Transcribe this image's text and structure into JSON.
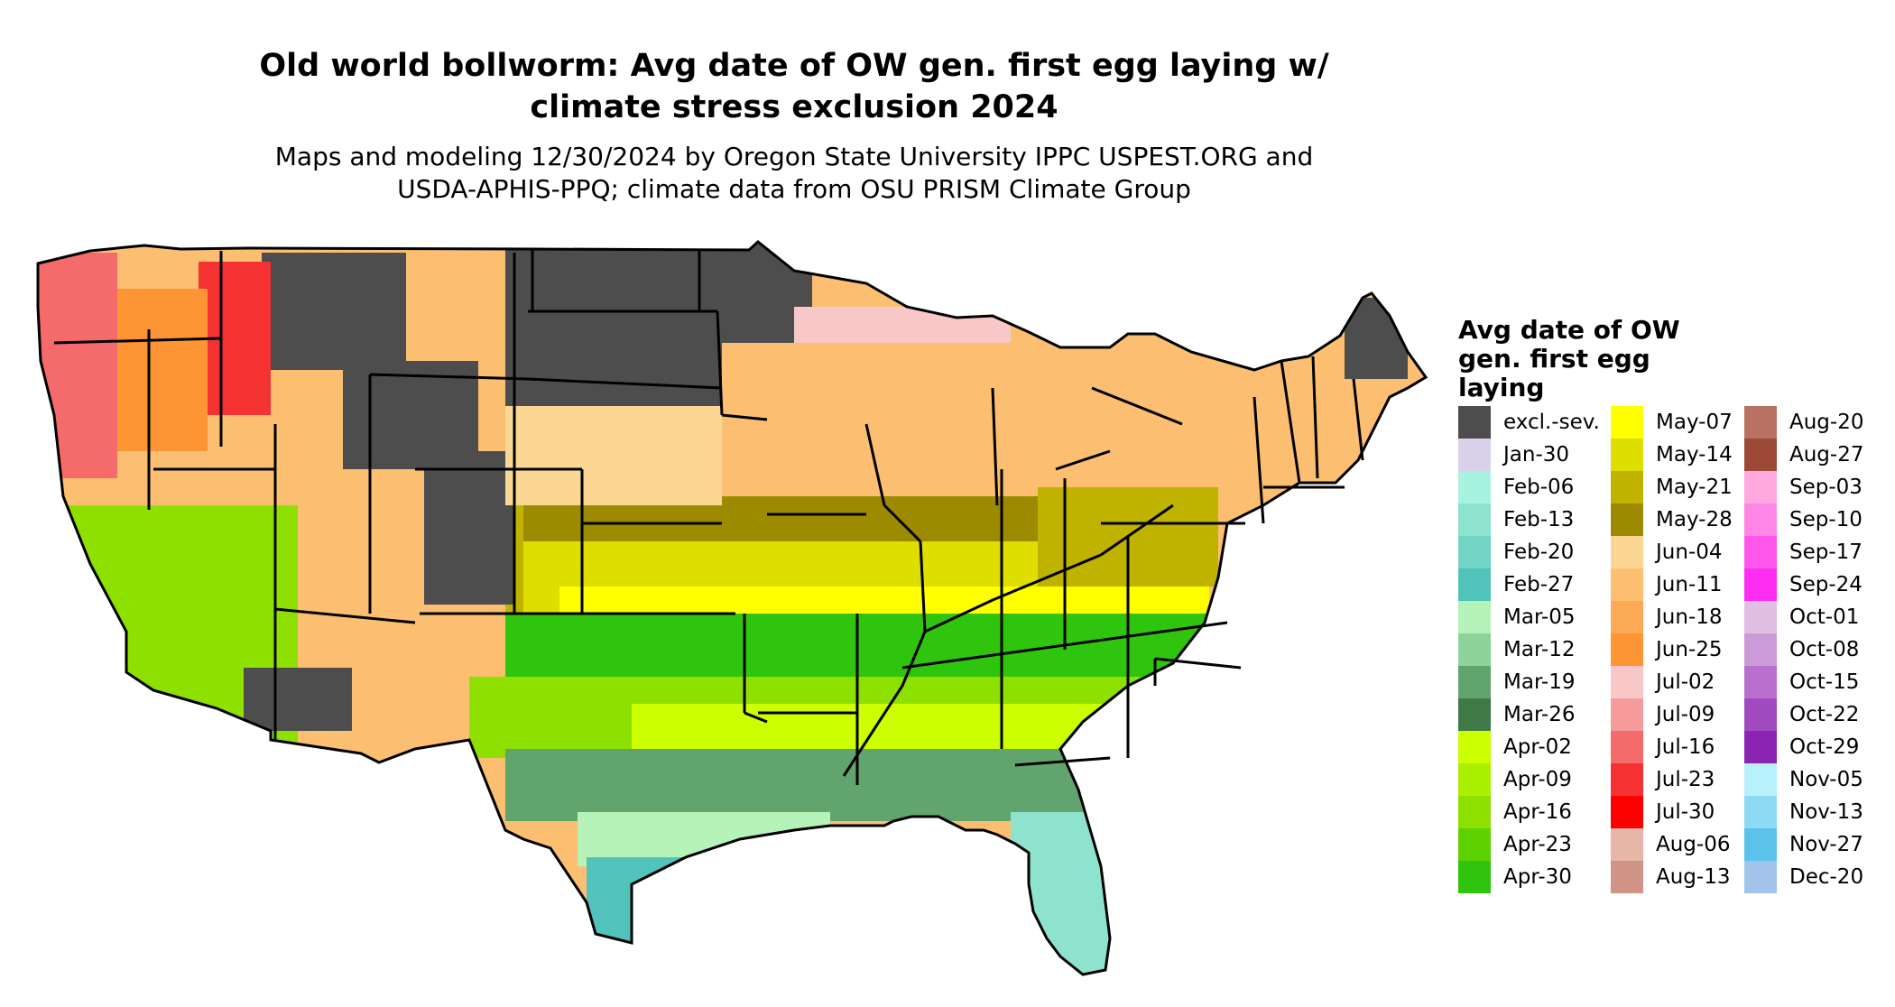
{
  "title_line1": "Old world bollworm: Avg date of OW gen. first egg laying w/",
  "title_line2": "climate stress exclusion 2024",
  "subtitle_line1": "Maps and modeling 12/30/2024 by Oregon State University IPPC USPEST.ORG and",
  "subtitle_line2": "USDA-APHIS-PPQ; climate data from OSU PRISM Climate Group",
  "legend": {
    "title_lines": [
      "Avg date of OW",
      "gen. first egg",
      "laying"
    ],
    "columns": [
      [
        {
          "label": "excl.-sev.",
          "color": "#4d4d4d"
        },
        {
          "label": "Jan-30",
          "color": "#d9d1ea"
        },
        {
          "label": "Feb-06",
          "color": "#a8f3df"
        },
        {
          "label": "Feb-13",
          "color": "#8ee3cf"
        },
        {
          "label": "Feb-20",
          "color": "#71d4c4"
        },
        {
          "label": "Feb-27",
          "color": "#52c3bb"
        },
        {
          "label": "Mar-05",
          "color": "#b6f3b9"
        },
        {
          "label": "Mar-12",
          "color": "#8ed49a"
        },
        {
          "label": "Mar-19",
          "color": "#62a46d"
        },
        {
          "label": "Mar-26",
          "color": "#3f7a46"
        },
        {
          "label": "Apr-02",
          "color": "#ccff00"
        },
        {
          "label": "Apr-09",
          "color": "#aaf000"
        },
        {
          "label": "Apr-16",
          "color": "#8ee000"
        },
        {
          "label": "Apr-23",
          "color": "#5ed200"
        },
        {
          "label": "Apr-30",
          "color": "#2fc50e"
        }
      ],
      [
        {
          "label": "May-07",
          "color": "#ffff00"
        },
        {
          "label": "May-14",
          "color": "#dede00"
        },
        {
          "label": "May-21",
          "color": "#bfb300"
        },
        {
          "label": "May-28",
          "color": "#9c8a00"
        },
        {
          "label": "Jun-04",
          "color": "#fcd793"
        },
        {
          "label": "Jun-11",
          "color": "#fcbf71"
        },
        {
          "label": "Jun-18",
          "color": "#fdaa56"
        },
        {
          "label": "Jun-25",
          "color": "#fd9535"
        },
        {
          "label": "Jul-02",
          "color": "#f8c8c8"
        },
        {
          "label": "Jul-09",
          "color": "#f59b9b"
        },
        {
          "label": "Jul-16",
          "color": "#f56a6a"
        },
        {
          "label": "Jul-23",
          "color": "#f53232"
        },
        {
          "label": "Jul-30",
          "color": "#fd0000"
        },
        {
          "label": "Aug-06",
          "color": "#e6b6a9"
        },
        {
          "label": "Aug-13",
          "color": "#d09486"
        }
      ],
      [
        {
          "label": "Aug-20",
          "color": "#b97262"
        },
        {
          "label": "Aug-27",
          "color": "#9c4937"
        },
        {
          "label": "Sep-03",
          "color": "#ffa9e0"
        },
        {
          "label": "Sep-10",
          "color": "#ff86e6"
        },
        {
          "label": "Sep-17",
          "color": "#ff57ec"
        },
        {
          "label": "Sep-24",
          "color": "#ff2cf2"
        },
        {
          "label": "Oct-01",
          "color": "#e0bfe2"
        },
        {
          "label": "Oct-08",
          "color": "#cd9ad9"
        },
        {
          "label": "Oct-15",
          "color": "#b86fce"
        },
        {
          "label": "Oct-22",
          "color": "#a14ac0"
        },
        {
          "label": "Oct-29",
          "color": "#8b24b2"
        },
        {
          "label": "Nov-05",
          "color": "#b8f0fc"
        },
        {
          "label": "Nov-13",
          "color": "#8ed9f3"
        },
        {
          "label": "Nov-27",
          "color": "#5bc2ea"
        },
        {
          "label": "Dec-20",
          "color": "#a2c4ea"
        }
      ]
    ]
  }
}
